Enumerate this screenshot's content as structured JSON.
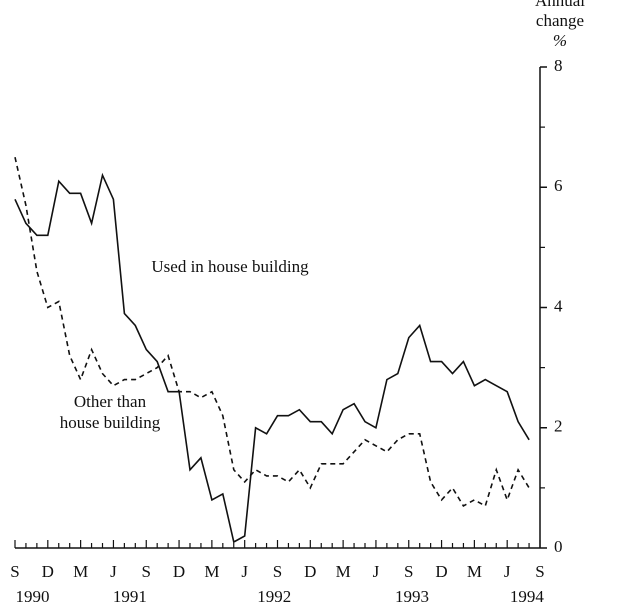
{
  "chart_data": {
    "type": "line",
    "y_label": [
      "Annual",
      "change",
      "%"
    ],
    "categories": [
      "S",
      null,
      null,
      "D",
      null,
      null,
      "M",
      null,
      null,
      "J",
      null,
      null,
      "S",
      null,
      null,
      "D",
      null,
      null,
      "M",
      null,
      null,
      "J",
      null,
      null,
      "S",
      null,
      null,
      "D",
      null,
      null,
      "M",
      null,
      null,
      "J",
      null,
      null,
      "S",
      null,
      null,
      "D",
      null,
      null,
      "M",
      null,
      null,
      "J",
      null,
      null,
      "S"
    ],
    "x_groups": [
      "1990",
      "1991",
      "1992",
      "1993",
      "1994"
    ],
    "series": [
      {
        "name": "Used in house building",
        "color": "#111111",
        "dash": false,
        "values": [
          5.8,
          5.4,
          5.2,
          5.2,
          6.1,
          5.9,
          5.9,
          5.4,
          6.2,
          5.8,
          3.9,
          3.7,
          3.3,
          3.1,
          2.6,
          2.6,
          1.3,
          1.5,
          0.8,
          0.9,
          0.1,
          0.2,
          2.0,
          1.9,
          2.2,
          2.2,
          2.3,
          2.1,
          2.1,
          1.9,
          2.3,
          2.4,
          2.1,
          2.0,
          2.8,
          2.9,
          3.5,
          3.7,
          3.1,
          3.1,
          2.9,
          3.1,
          2.7,
          2.8,
          2.7,
          2.6,
          2.1,
          1.8,
          null
        ]
      },
      {
        "name": "Other than house building",
        "color": "#111111",
        "dash": true,
        "values": [
          6.5,
          5.7,
          4.6,
          4.0,
          4.1,
          3.2,
          2.8,
          3.3,
          2.9,
          2.7,
          2.8,
          2.8,
          2.9,
          3.0,
          3.2,
          2.6,
          2.6,
          2.5,
          2.6,
          2.2,
          1.3,
          1.1,
          1.3,
          1.2,
          1.2,
          1.1,
          1.3,
          1.0,
          1.4,
          1.4,
          1.4,
          1.6,
          1.8,
          1.7,
          1.6,
          1.8,
          1.9,
          1.9,
          1.1,
          0.8,
          1.0,
          0.7,
          0.8,
          0.7,
          1.3,
          0.8,
          1.3,
          1.0,
          null
        ]
      }
    ],
    "annotations": [
      [
        "Used in house building"
      ],
      [
        "Other than",
        "house building"
      ]
    ],
    "ylim": [
      0,
      8
    ],
    "yticks": [
      0,
      2,
      4,
      6,
      8
    ],
    "minor_yticks": [
      1,
      3,
      5,
      7
    ],
    "y_axis_side": "right"
  }
}
